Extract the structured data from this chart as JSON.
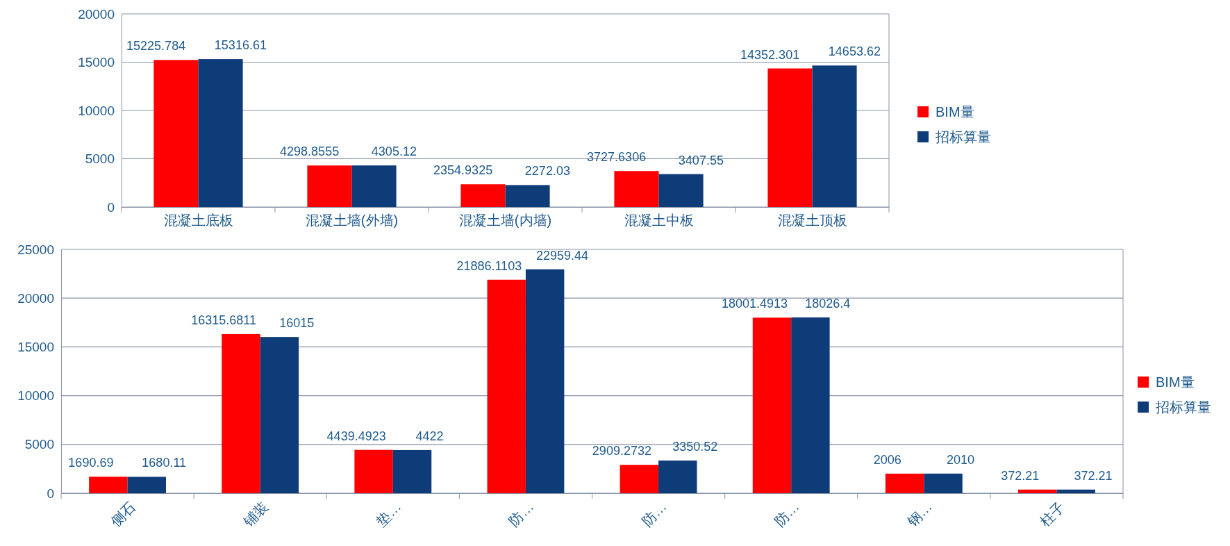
{
  "chart_data": [
    {
      "type": "bar",
      "categories": [
        "混凝土底板",
        "混凝土墙(外墙)",
        "混凝土墙(内墙)",
        "混凝土中板",
        "混凝土顶板"
      ],
      "series": [
        {
          "name": "BIM量",
          "color": "#ff0000",
          "values": [
            15225.784,
            4298.8555,
            2354.9325,
            3727.6306,
            14352.301
          ]
        },
        {
          "name": "招标算量",
          "color": "#0d3c78",
          "values": [
            15316.61,
            4305.12,
            2272.03,
            3407.55,
            14653.62
          ]
        }
      ],
      "ylim": [
        0,
        20000
      ],
      "yticks": [
        0,
        5000,
        10000,
        15000,
        20000
      ],
      "grid": "y",
      "legend": "right",
      "data_labels": true
    },
    {
      "type": "bar",
      "categories": [
        "侧石",
        "铺装",
        "垫…",
        "防…",
        "防…",
        "防…",
        "钢…",
        "柱子"
      ],
      "series": [
        {
          "name": "BIM量",
          "color": "#ff0000",
          "values": [
            1690.69,
            16315.6811,
            4439.4923,
            21886.1103,
            2909.2732,
            18001.4913,
            2006,
            372.21
          ]
        },
        {
          "name": "招标算量",
          "color": "#0d3c78",
          "values": [
            1680.11,
            16015,
            4422,
            22959.44,
            3350.52,
            18026.4,
            2010,
            372.21
          ]
        }
      ],
      "ylim": [
        0,
        25000
      ],
      "yticks": [
        0,
        5000,
        10000,
        15000,
        20000,
        25000
      ],
      "grid": "y",
      "legend": "right",
      "data_labels": true
    }
  ]
}
